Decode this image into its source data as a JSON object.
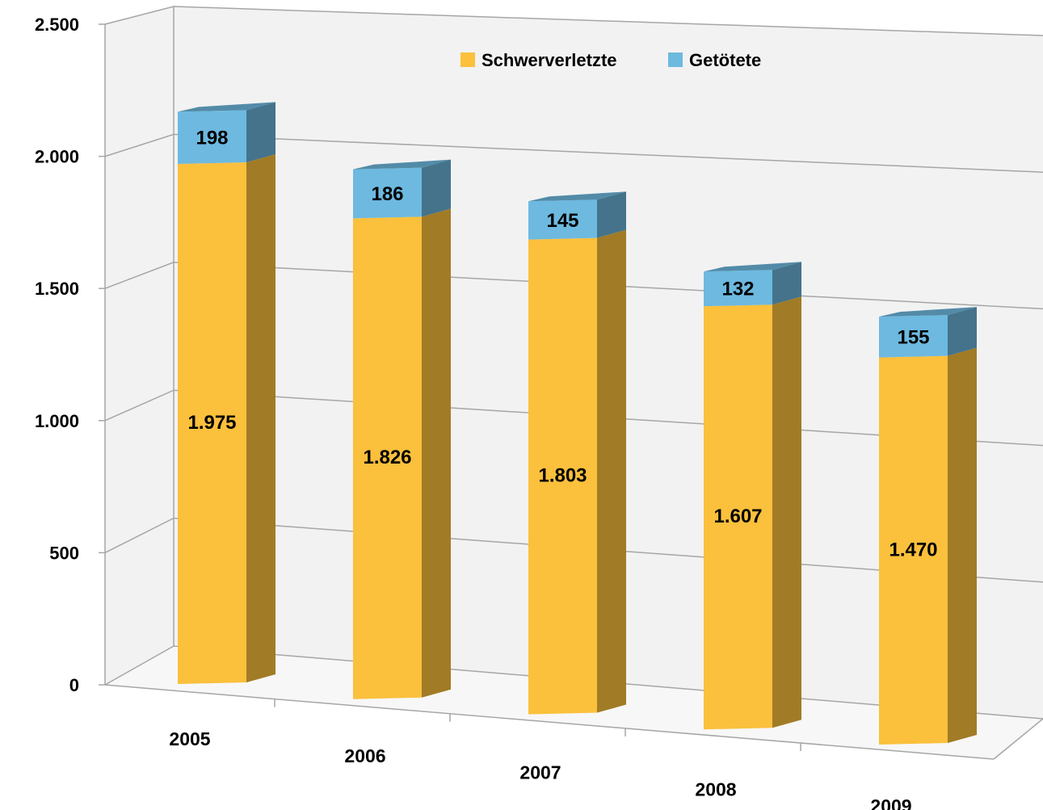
{
  "chart_data": {
    "type": "bar",
    "stacked": true,
    "three_d": true,
    "title": "",
    "xlabel": "",
    "ylabel": "",
    "categories": [
      "2005",
      "2006",
      "2007",
      "2008",
      "2009"
    ],
    "series": [
      {
        "name": "Schwerverletzte",
        "values": [
          1975,
          1826,
          1803,
          1607,
          1470
        ],
        "labels": [
          "1.975",
          "1.826",
          "1.803",
          "1.607",
          "1.470"
        ],
        "color": "#FBC03C"
      },
      {
        "name": "Getötete",
        "values": [
          198,
          186,
          145,
          132,
          155
        ],
        "labels": [
          "198",
          "186",
          "145",
          "132",
          "155"
        ],
        "color": "#6DB9E0"
      }
    ],
    "ylim": [
      0,
      2500
    ],
    "yticks": [
      0,
      500,
      1000,
      1500,
      2000,
      2500
    ],
    "ytick_labels": [
      "0",
      "500",
      "1.000",
      "1.500",
      "2.000",
      "2.500"
    ],
    "grid": true,
    "legend_position": "top-right",
    "colors": {
      "background_wall": "#F2F2F2",
      "gridline": "#A6A6A6"
    }
  }
}
